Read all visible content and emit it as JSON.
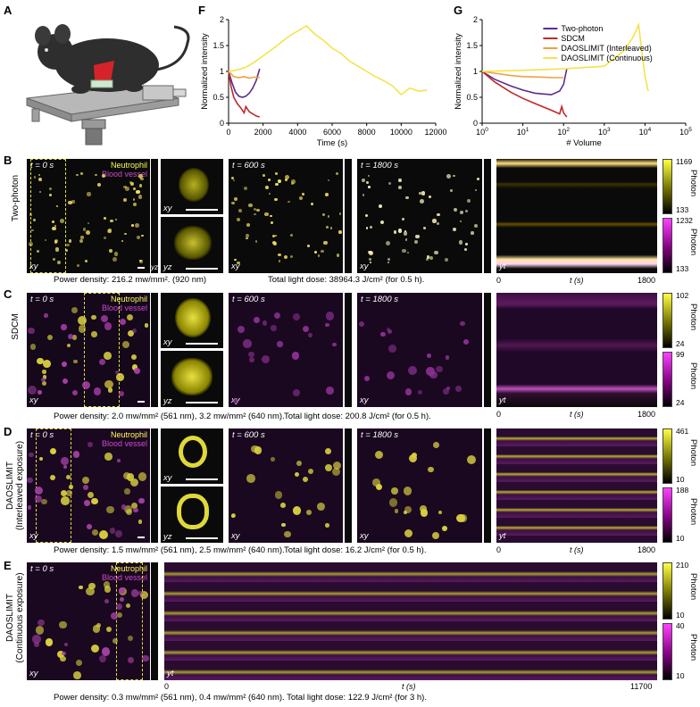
{
  "panels": {
    "A": "A",
    "B": "B",
    "C": "C",
    "D": "D",
    "E": "E",
    "F": "F",
    "G": "G"
  },
  "rows": {
    "B": {
      "label": "Two-photon",
      "caption_left": "Power density: 216.2 mw/mm². (920 nm)",
      "caption_right": "Total light dose: 38964.3 J/cm² (for 0.5 h).",
      "cbar_top": {
        "max": "1169",
        "min": "133"
      },
      "cbar_bottom": {
        "max": "1232",
        "min": "133"
      }
    },
    "C": {
      "label": "SDCM",
      "caption_left": "Power density: 2.0 mw/mm² (561 nm), 3.2 mw/mm² (640 nm).",
      "caption_right": "Total light dose: 200.8 J/cm² (for 0.5 h).",
      "cbar_top": {
        "max": "102",
        "min": "24"
      },
      "cbar_bottom": {
        "max": "99",
        "min": "24"
      }
    },
    "D": {
      "label1": "DAOSLIMIT",
      "label2": "(Interleaved exposure)",
      "caption_left": "Power density: 1.5 mw/mm² (561 nm), 2.5 mw/mm² (640 nm).",
      "caption_right": "Total light dose: 16.2 J/cm² (for 0.5 h).",
      "cbar_top": {
        "max": "461",
        "min": "10"
      },
      "cbar_bottom": {
        "max": "188",
        "min": "10"
      }
    },
    "E": {
      "label1": "DAOSLIMIT",
      "label2": "(Continuous exposure)",
      "caption": "Power density: 0.3 mw/mm² (561 nm), 0.4 mw/mm² (640 nm).   Total light dose: 122.9 J/cm² (for 3 h).",
      "cbar_top": {
        "max": "210",
        "min": "10"
      },
      "cbar_bottom": {
        "max": "40",
        "min": "10"
      },
      "x_min": "0",
      "x_max": "11700",
      "xlabel": "t (s)"
    }
  },
  "labels": {
    "t0": "t = 0 s",
    "t600": "t = 600 s",
    "t1800": "t = 1800 s",
    "neutrophil": "Neutrophil",
    "blood_vessel": "Blood vessel",
    "xy": "xy",
    "yz": "yz",
    "yt": "yt",
    "photon": "Photon",
    "tlabel": "t (s)",
    "t_start": "0",
    "t_end": "1800"
  },
  "chart_data": [
    {
      "type": "line",
      "id": "F",
      "xlabel": "Time (s)",
      "ylabel": "Normalized intensity",
      "xlim": [
        0,
        12000
      ],
      "ylim": [
        0,
        2
      ],
      "xticks": [
        0,
        2000,
        4000,
        6000,
        8000,
        10000,
        12000
      ],
      "yticks": [
        0,
        0.5,
        1,
        1.5,
        2
      ],
      "series": [
        {
          "color": "#5b2c91",
          "x": [
            0,
            200,
            400,
            600,
            800,
            1000,
            1200,
            1400,
            1600,
            1800
          ],
          "y": [
            1.0,
            0.78,
            0.6,
            0.52,
            0.5,
            0.52,
            0.58,
            0.68,
            0.82,
            1.05
          ]
        },
        {
          "color": "#c0282d",
          "x": [
            0,
            150,
            300,
            500,
            700,
            900,
            1000,
            1200,
            1400,
            1600,
            1800
          ],
          "y": [
            1.0,
            0.7,
            0.5,
            0.38,
            0.3,
            0.2,
            0.32,
            0.22,
            0.18,
            0.14,
            0.12
          ]
        },
        {
          "color": "#f0a040",
          "x": [
            0,
            300,
            600,
            900,
            1200,
            1500,
            1800
          ],
          "y": [
            1.0,
            0.9,
            0.88,
            0.9,
            0.87,
            0.89,
            0.88
          ]
        },
        {
          "color": "#f3e34a",
          "x": [
            0,
            500,
            1000,
            1500,
            2000,
            2500,
            3000,
            3500,
            4000,
            4500,
            5000,
            5500,
            6000,
            6500,
            7000,
            7500,
            8000,
            8500,
            9000,
            9500,
            10000,
            10500,
            11000,
            11500
          ],
          "y": [
            1.0,
            1.03,
            1.08,
            1.18,
            1.3,
            1.42,
            1.55,
            1.68,
            1.78,
            1.88,
            1.72,
            1.6,
            1.45,
            1.35,
            1.2,
            1.1,
            1.0,
            0.9,
            0.82,
            0.72,
            0.55,
            0.68,
            0.62,
            0.64
          ]
        }
      ]
    },
    {
      "type": "line",
      "id": "G",
      "xlabel": "# Volume",
      "ylabel": "Normalized intensity",
      "xscale": "log",
      "xlim": [
        1,
        100000
      ],
      "ylim": [
        0,
        2
      ],
      "xticks": [
        "10^0",
        "10^1",
        "10^2",
        "10^3",
        "10^4",
        "10^5"
      ],
      "yticks": [
        0,
        0.5,
        1,
        1.5,
        2
      ],
      "legend_position": "top-right",
      "legend": [
        "Two-photon",
        "SDCM",
        "DAOSLIMIT (Interleaved)",
        "DAOSLIMIT (Continuous)"
      ],
      "series": [
        {
          "name": "Two-photon",
          "color": "#5b2c91",
          "x": [
            1,
            2,
            5,
            10,
            20,
            50,
            80,
            100,
            120
          ],
          "y": [
            1.0,
            0.85,
            0.72,
            0.64,
            0.58,
            0.55,
            0.62,
            0.75,
            1.05
          ]
        },
        {
          "name": "SDCM",
          "color": "#c0282d",
          "x": [
            1,
            2,
            5,
            10,
            20,
            50,
            80,
            90,
            100,
            120
          ],
          "y": [
            1.0,
            0.8,
            0.6,
            0.48,
            0.38,
            0.25,
            0.18,
            0.32,
            0.2,
            0.12
          ]
        },
        {
          "name": "DAOSLIMIT (Interleaved)",
          "color": "#f0a040",
          "x": [
            1,
            5,
            10,
            30,
            60,
            100
          ],
          "y": [
            1.0,
            0.92,
            0.9,
            0.89,
            0.88,
            0.88
          ]
        },
        {
          "name": "DAOSLIMIT (Continuous)",
          "color": "#f3e34a",
          "x": [
            1,
            10,
            100,
            1000,
            3000,
            5000,
            7000,
            8000,
            10000,
            12000
          ],
          "y": [
            1.0,
            1.02,
            1.05,
            1.1,
            1.4,
            1.65,
            1.9,
            1.5,
            0.9,
            0.62
          ]
        }
      ]
    }
  ]
}
